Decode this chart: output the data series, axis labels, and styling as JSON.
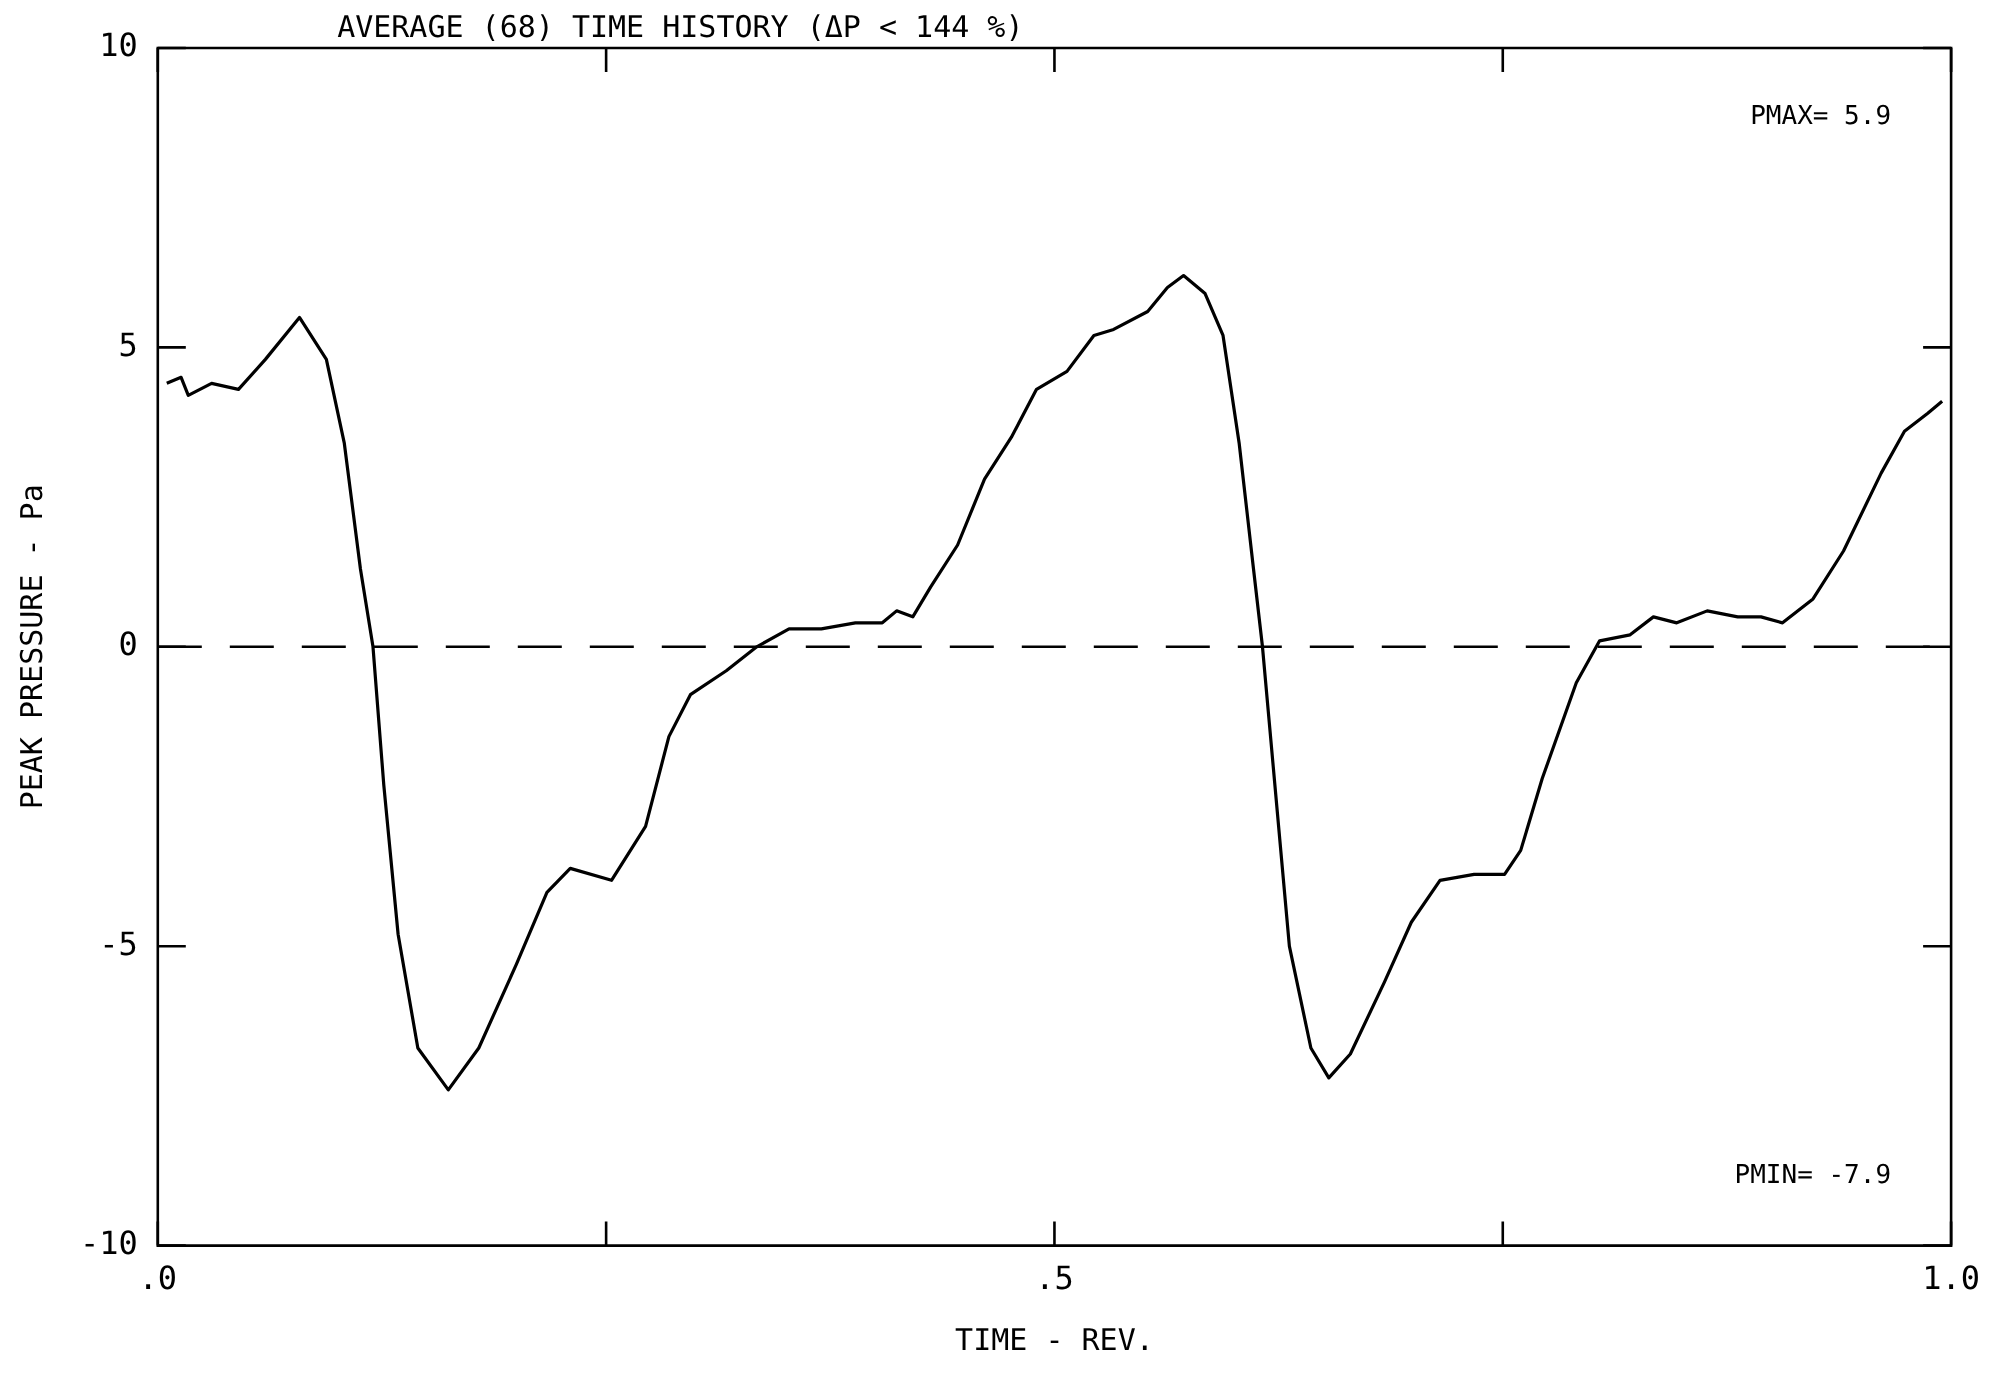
{
  "chart_data": {
    "type": "line",
    "title": "AVERAGE (68) TIME HISTORY (ΔP < 144 %)",
    "xlabel": "TIME - REV.",
    "ylabel": "PEAK PRESSURE - Pa",
    "x": [
      0.005,
      0.013,
      0.017,
      0.03,
      0.045,
      0.06,
      0.079,
      0.094,
      0.104,
      0.113,
      0.12,
      0.126,
      0.134,
      0.145,
      0.162,
      0.179,
      0.2,
      0.217,
      0.23,
      0.253,
      0.272,
      0.285,
      0.297,
      0.317,
      0.334,
      0.352,
      0.37,
      0.389,
      0.404,
      0.412,
      0.421,
      0.431,
      0.446,
      0.461,
      0.476,
      0.49,
      0.507,
      0.522,
      0.533,
      0.552,
      0.563,
      0.572,
      0.584,
      0.594,
      0.603,
      0.611,
      0.616,
      0.622,
      0.631,
      0.643,
      0.653,
      0.665,
      0.684,
      0.699,
      0.715,
      0.734,
      0.751,
      0.76,
      0.772,
      0.791,
      0.804,
      0.821,
      0.834,
      0.847,
      0.864,
      0.881,
      0.894,
      0.906,
      0.923,
      0.94,
      0.961,
      0.974,
      0.987,
      0.995
    ],
    "series": [
      {
        "color": "#000000",
        "values": [
          4.4,
          4.5,
          4.2,
          4.4,
          4.3,
          4.8,
          5.5,
          4.8,
          3.4,
          1.3,
          0,
          -2.3,
          -4.8,
          -6.7,
          -7.4,
          -6.7,
          -5.3,
          -4.1,
          -3.7,
          -3.9,
          -3,
          -1.5,
          -0.8,
          -0.4,
          0,
          0.3,
          0.3,
          0.4,
          0.4,
          0.6,
          0.5,
          1,
          1.7,
          2.8,
          3.5,
          4.3,
          4.6,
          5.2,
          5.3,
          5.6,
          6,
          6.2,
          5.9,
          5.2,
          3.4,
          1.3,
          0,
          -2,
          -5,
          -6.7,
          -7.2,
          -6.8,
          -5.6,
          -4.6,
          -3.9,
          -3.8,
          -3.8,
          -3.4,
          -2.2,
          -0.6,
          0.1,
          0.2,
          0.5,
          0.4,
          0.6,
          0.5,
          0.5,
          0.4,
          0.8,
          1.6,
          2.9,
          3.6,
          3.9,
          4.1
        ]
      }
    ],
    "xlim": [
      0,
      1
    ],
    "xticks": [
      {
        "value": 0,
        "label": ".0"
      },
      {
        "value": 0.25,
        "label": null
      },
      {
        "value": 0.5,
        "label": ".5"
      },
      {
        "value": 0.75,
        "label": null
      },
      {
        "value": 1,
        "label": "1.0"
      }
    ],
    "ylim": [
      -10,
      10
    ],
    "yticks": [
      -10,
      -5,
      0,
      5,
      10
    ],
    "ref_lines": [
      {
        "axis": "y",
        "value": 0,
        "color": "#000000",
        "line_style": "dashed"
      }
    ],
    "annotations": [
      "PMAX= 5.9",
      "PMIN= -7.9"
    ],
    "grid": false,
    "legend": false,
    "marker": "none",
    "line_style": "solid"
  }
}
